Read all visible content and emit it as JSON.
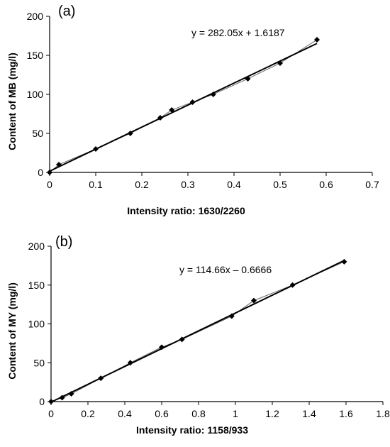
{
  "chart_data": [
    {
      "type": "scatter",
      "panel_label": "(a)",
      "xlabel": "Intensity ratio: 1630/2260",
      "ylabel": "Content of MB (mg/l)",
      "xlim": [
        0,
        0.7
      ],
      "ylim": [
        0,
        200
      ],
      "xticks": [
        "0",
        "0.1",
        "0.2",
        "0.3",
        "0.4",
        "0.5",
        "0.6",
        "0.7"
      ],
      "yticks": [
        "0",
        "50",
        "100",
        "150",
        "200"
      ],
      "grid": false,
      "equation": "y = 282.05x + 1.6187",
      "trendline": {
        "slope": 282.05,
        "intercept": 1.6187,
        "x_range": [
          0,
          0.58
        ]
      },
      "series": [
        {
          "x": [
            0,
            0.02,
            0.1,
            0.175,
            0.24,
            0.265,
            0.31,
            0.355,
            0.43,
            0.5,
            0.58
          ],
          "y": [
            0,
            10,
            30,
            50,
            70,
            80,
            90,
            100,
            120,
            140,
            170
          ]
        }
      ]
    },
    {
      "type": "scatter",
      "panel_label": "(b)",
      "xlabel": "Intensity ratio: 1158/933",
      "ylabel": "Content of MY (mg/l)",
      "xlim": [
        0,
        1.8
      ],
      "ylim": [
        0,
        200
      ],
      "xticks": [
        "0",
        "0.2",
        "0.4",
        "0.6",
        "0.8",
        "1",
        "1.2",
        "1.4",
        "1.6",
        "1.8"
      ],
      "yticks": [
        "0",
        "50",
        "100",
        "150",
        "200"
      ],
      "grid": false,
      "equation": "y = 114.66x – 0.6666",
      "trendline": {
        "slope": 114.66,
        "intercept": -0.6666,
        "x_range": [
          0,
          1.59
        ]
      },
      "series": [
        {
          "x": [
            0,
            0.06,
            0.11,
            0.27,
            0.43,
            0.6,
            0.71,
            0.98,
            1.1,
            1.31,
            1.59
          ],
          "y": [
            0,
            5,
            10,
            30,
            50,
            70,
            80,
            110,
            130,
            150,
            180
          ]
        }
      ]
    }
  ]
}
